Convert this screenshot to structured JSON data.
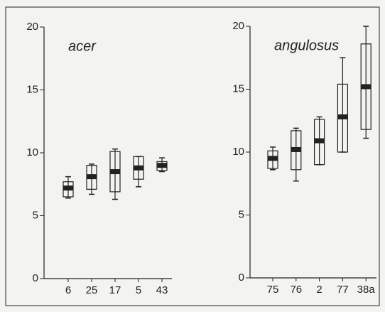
{
  "chart_data": [
    {
      "type": "box",
      "title": "acer",
      "categories": [
        "6",
        "25",
        "17",
        "5",
        "43"
      ],
      "boxes": [
        {
          "min": 6.4,
          "q1": 6.5,
          "median": 7.2,
          "q3": 7.7,
          "max": 8.1
        },
        {
          "min": 6.7,
          "q1": 7.1,
          "median": 8.1,
          "q3": 9.0,
          "max": 9.1
        },
        {
          "min": 6.3,
          "q1": 6.9,
          "median": 8.5,
          "q3": 10.1,
          "max": 10.3
        },
        {
          "min": 7.3,
          "q1": 7.9,
          "median": 8.8,
          "q3": 9.7,
          "max": 9.7
        },
        {
          "min": 8.5,
          "q1": 8.6,
          "median": 9.0,
          "q3": 9.3,
          "max": 9.6
        }
      ],
      "ylim": [
        0,
        20
      ],
      "yticks": [
        0,
        5,
        10,
        15,
        20
      ]
    },
    {
      "type": "box",
      "title": "angulosus",
      "categories": [
        "75",
        "76",
        "2",
        "77",
        "38a"
      ],
      "boxes": [
        {
          "min": 8.6,
          "q1": 8.7,
          "median": 9.5,
          "q3": 10.1,
          "max": 10.4
        },
        {
          "min": 7.7,
          "q1": 8.6,
          "median": 10.2,
          "q3": 11.7,
          "max": 11.9
        },
        {
          "min": 9.0,
          "q1": 9.0,
          "median": 10.9,
          "q3": 12.6,
          "max": 12.8
        },
        {
          "min": 10.0,
          "q1": 10.0,
          "median": 12.8,
          "q3": 15.4,
          "max": 17.5
        },
        {
          "min": 11.1,
          "q1": 11.8,
          "median": 15.2,
          "q3": 18.6,
          "max": 20.0
        }
      ],
      "ylim": [
        0,
        20
      ],
      "yticks": [
        0,
        5,
        10,
        15,
        20
      ]
    }
  ]
}
